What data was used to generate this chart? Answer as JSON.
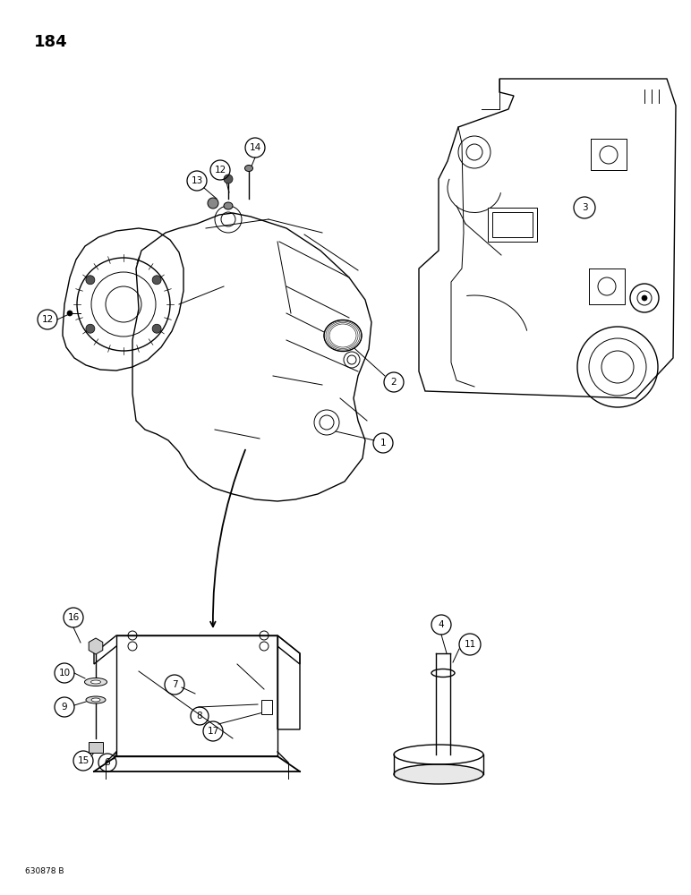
{
  "page_number": "184",
  "footer_text": "630878 B",
  "background_color": "#ffffff",
  "line_color": "#000000",
  "lw_main": 1.3,
  "lw_thin": 0.7,
  "lw_med": 1.0,
  "label_font": 7.5,
  "page_font": 13,
  "footer_font": 6.5
}
